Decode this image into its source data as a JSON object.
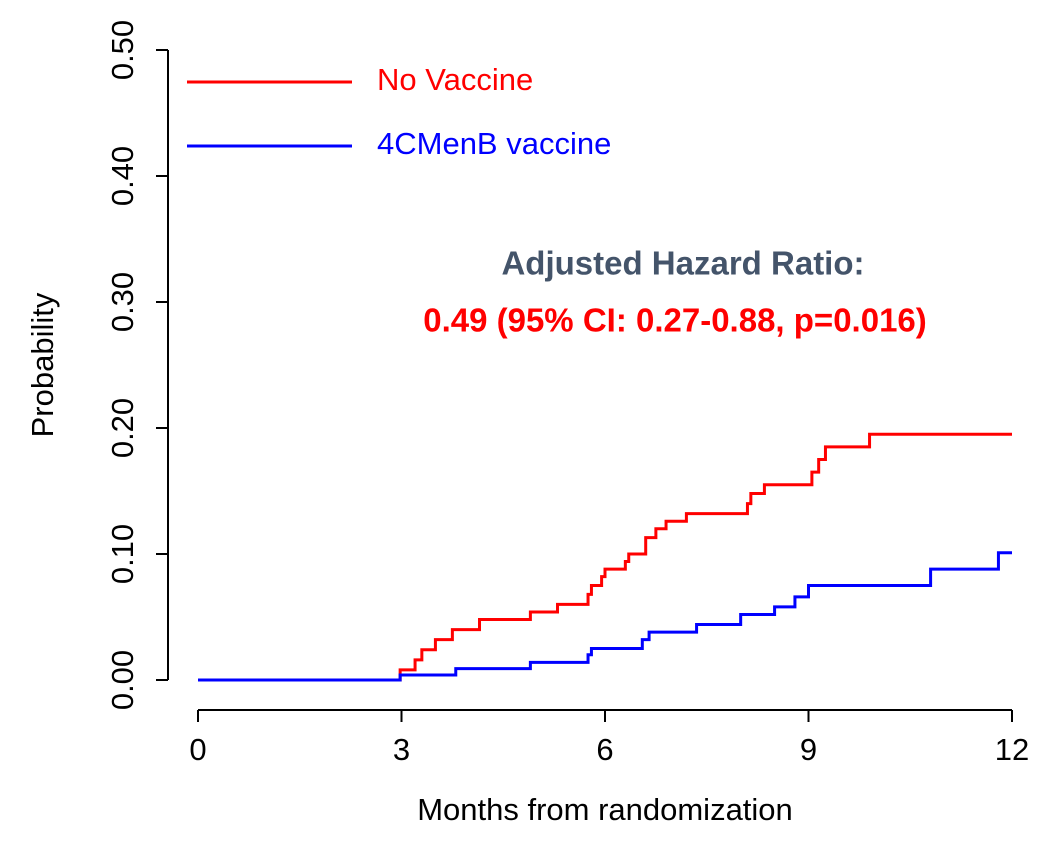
{
  "chart_data": {
    "type": "step",
    "xlabel": "Months from randomization",
    "ylabel": "Probability",
    "xlim": [
      0,
      12
    ],
    "ylim": [
      0,
      0.5
    ],
    "xticks": [
      0,
      3,
      6,
      9,
      12
    ],
    "yticks": [
      {
        "value": 0,
        "label": "0.00"
      },
      {
        "value": 0.1,
        "label": "0.10"
      },
      {
        "value": 0.2,
        "label": "0.20"
      },
      {
        "value": 0.3,
        "label": "0.30"
      },
      {
        "value": 0.4,
        "label": "0.40"
      },
      {
        "value": 0.5,
        "label": "0.50"
      }
    ],
    "legend": "upper left",
    "series": [
      {
        "name": "No Vaccine",
        "color": "#ff0000",
        "x": [
          0,
          2.98,
          3.2,
          3.3,
          3.5,
          3.75,
          4.15,
          4.9,
          5.3,
          5.75,
          5.8,
          5.95,
          6.0,
          6.3,
          6.35,
          6.6,
          6.75,
          6.9,
          7.2,
          8.1,
          8.15,
          8.35,
          9.05,
          9.15,
          9.25,
          9.9,
          12
        ],
        "values": [
          0,
          0.008,
          0.016,
          0.024,
          0.032,
          0.04,
          0.048,
          0.054,
          0.06,
          0.068,
          0.075,
          0.082,
          0.088,
          0.094,
          0.1,
          0.113,
          0.12,
          0.126,
          0.132,
          0.14,
          0.148,
          0.155,
          0.165,
          0.175,
          0.185,
          0.195,
          0.195
        ]
      },
      {
        "name": "4CMenB vaccine",
        "color": "#0000ff",
        "x": [
          0,
          2.98,
          3.8,
          4.9,
          5.75,
          5.8,
          6.55,
          6.65,
          7.35,
          8.0,
          8.5,
          8.8,
          9.0,
          10.8,
          11.8,
          12
        ],
        "values": [
          0,
          0.004,
          0.009,
          0.014,
          0.02,
          0.025,
          0.032,
          0.038,
          0.044,
          0.052,
          0.058,
          0.066,
          0.075,
          0.088,
          0.101,
          0.101
        ]
      }
    ],
    "annotations": [
      {
        "text": "Adjusted Hazard Ratio:",
        "color": "#44546a"
      },
      {
        "text": "0.49 (95% CI: 0.27-0.88, p=0.016)",
        "color": "#ff0000"
      }
    ]
  }
}
